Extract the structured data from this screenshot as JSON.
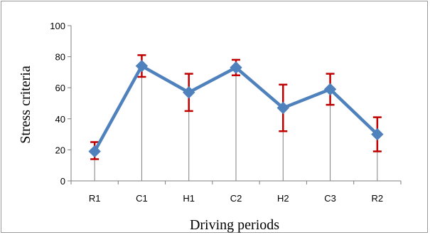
{
  "chart_data": {
    "type": "line",
    "title": "",
    "xlabel": "Driving periods",
    "ylabel": "Stress criteria",
    "categories": [
      "R1",
      "C1",
      "H1",
      "C2",
      "H2",
      "C3",
      "R2"
    ],
    "series": [
      {
        "values": [
          19,
          74,
          57,
          73,
          47,
          59,
          30
        ],
        "error_low": [
          14,
          67,
          45,
          68,
          32,
          49,
          19
        ],
        "error_high": [
          25,
          81,
          69,
          78,
          62,
          69,
          41
        ]
      }
    ],
    "ylim": [
      0,
      100
    ],
    "yticks": [
      0,
      20,
      40,
      60,
      80,
      100
    ],
    "drop_lines": true,
    "grid": false,
    "legend": "none",
    "colors": {
      "line": "#4f81bd",
      "marker": "#4f81bd",
      "error_bar": "#c00000",
      "drop_line": "#7f7f7f",
      "axis": "#7f7f7f"
    }
  }
}
